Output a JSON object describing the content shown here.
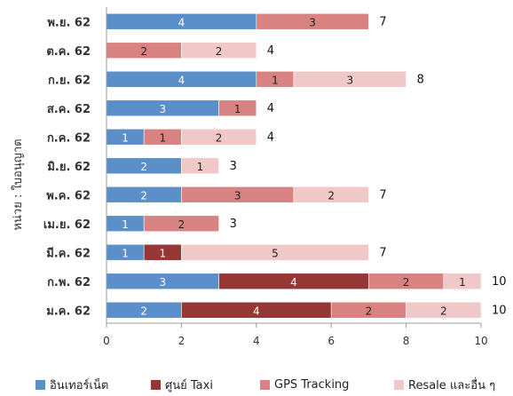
{
  "chart_data": {
    "type": "bar",
    "orientation": "horizontal",
    "stacked": true,
    "ylabel": "หน่วย : ใบอนุญาต",
    "xlim": [
      0,
      10
    ],
    "xticks": [
      "0",
      "2",
      "4",
      "6",
      "8",
      "10"
    ],
    "categories": [
      "พ.ย. 62",
      "ต.ค. 62",
      "ก.ย. 62",
      "ส.ค. 62",
      "ก.ค. 62",
      "มิ.ย. 62",
      "พ.ค. 62",
      "เม.ย. 62",
      "มี.ค. 62",
      "ก.พ. 62",
      "ม.ค. 62"
    ],
    "series": [
      {
        "name": "อินเทอร์เน็ต",
        "color": "#5B8FC9",
        "label_color": "#ffffff",
        "values": [
          4,
          0,
          4,
          3,
          1,
          2,
          2,
          1,
          1,
          3,
          2
        ]
      },
      {
        "name": "ศูนย์ Taxi",
        "color": "#953735",
        "label_color": "#ffffff",
        "values": [
          0,
          0,
          0,
          0,
          0,
          0,
          0,
          0,
          1,
          4,
          4
        ]
      },
      {
        "name": "GPS Tracking",
        "color": "#D98282",
        "label_color": "#222222",
        "values": [
          3,
          2,
          1,
          1,
          1,
          0,
          3,
          2,
          0,
          2,
          2
        ]
      },
      {
        "name": "Resale และอื่น ๆ",
        "color": "#F0C8C8",
        "label_color": "#222222",
        "values": [
          0,
          2,
          3,
          0,
          2,
          1,
          2,
          0,
          5,
          1,
          2
        ]
      }
    ],
    "totals": [
      7,
      4,
      8,
      4,
      4,
      3,
      7,
      3,
      7,
      10,
      10
    ],
    "grid": false,
    "legend_position": "bottom"
  }
}
